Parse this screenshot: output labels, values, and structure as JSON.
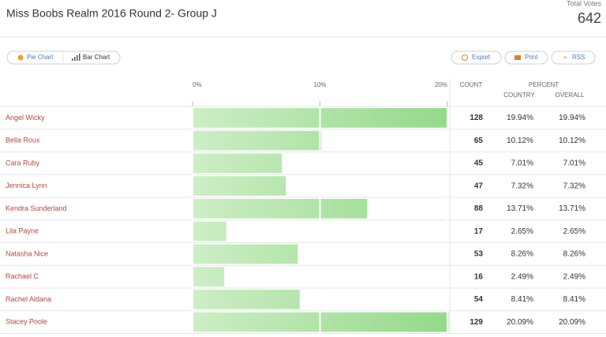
{
  "header": {
    "title": "Miss Boobs Realm 2016 Round 2- Group J",
    "total_label": "Total Votes",
    "total": 642
  },
  "toolbar": {
    "views": [
      "Pie Chart",
      "Bar Chart"
    ],
    "actions": [
      "Export",
      "Print",
      "RSS"
    ]
  },
  "columns": {
    "count": "COUNT",
    "percent": "PERCENT",
    "country": "COUNTRY",
    "overall": "OVERALL"
  },
  "chart_data": {
    "type": "bar",
    "orientation": "horizontal",
    "categories": [
      "Angel Wicky",
      "Bella Roux",
      "Cara Ruby",
      "Jennica Lynn",
      "Kendra Sunderland",
      "Lila Payne",
      "Natasha Nice",
      "Rachael C",
      "Rachel Aldana",
      "Stacey Poole"
    ],
    "values": [
      19.94,
      10.12,
      7.01,
      7.32,
      13.71,
      2.65,
      8.26,
      2.49,
      8.41,
      20.09
    ],
    "xlim": [
      0,
      20
    ],
    "xticks": [
      {
        "value": 0,
        "label": "0%"
      },
      {
        "value": 10,
        "label": "10%"
      },
      {
        "value": 20,
        "label": "20%"
      }
    ],
    "colors": [
      "#cdeec5",
      "#94d98a"
    ]
  },
  "table": {
    "counts": [
      128,
      65,
      45,
      47,
      88,
      17,
      53,
      16,
      54,
      129
    ],
    "country": [
      "19.94%",
      "10.12%",
      "7.01%",
      "7.32%",
      "13.71%",
      "2.65%",
      "8.26%",
      "2.49%",
      "8.41%",
      "20.09%"
    ],
    "overall": [
      "19.94%",
      "10.12%",
      "7.01%",
      "7.32%",
      "13.71%",
      "2.65%",
      "8.26%",
      "2.49%",
      "8.41%",
      "20.09%"
    ]
  }
}
